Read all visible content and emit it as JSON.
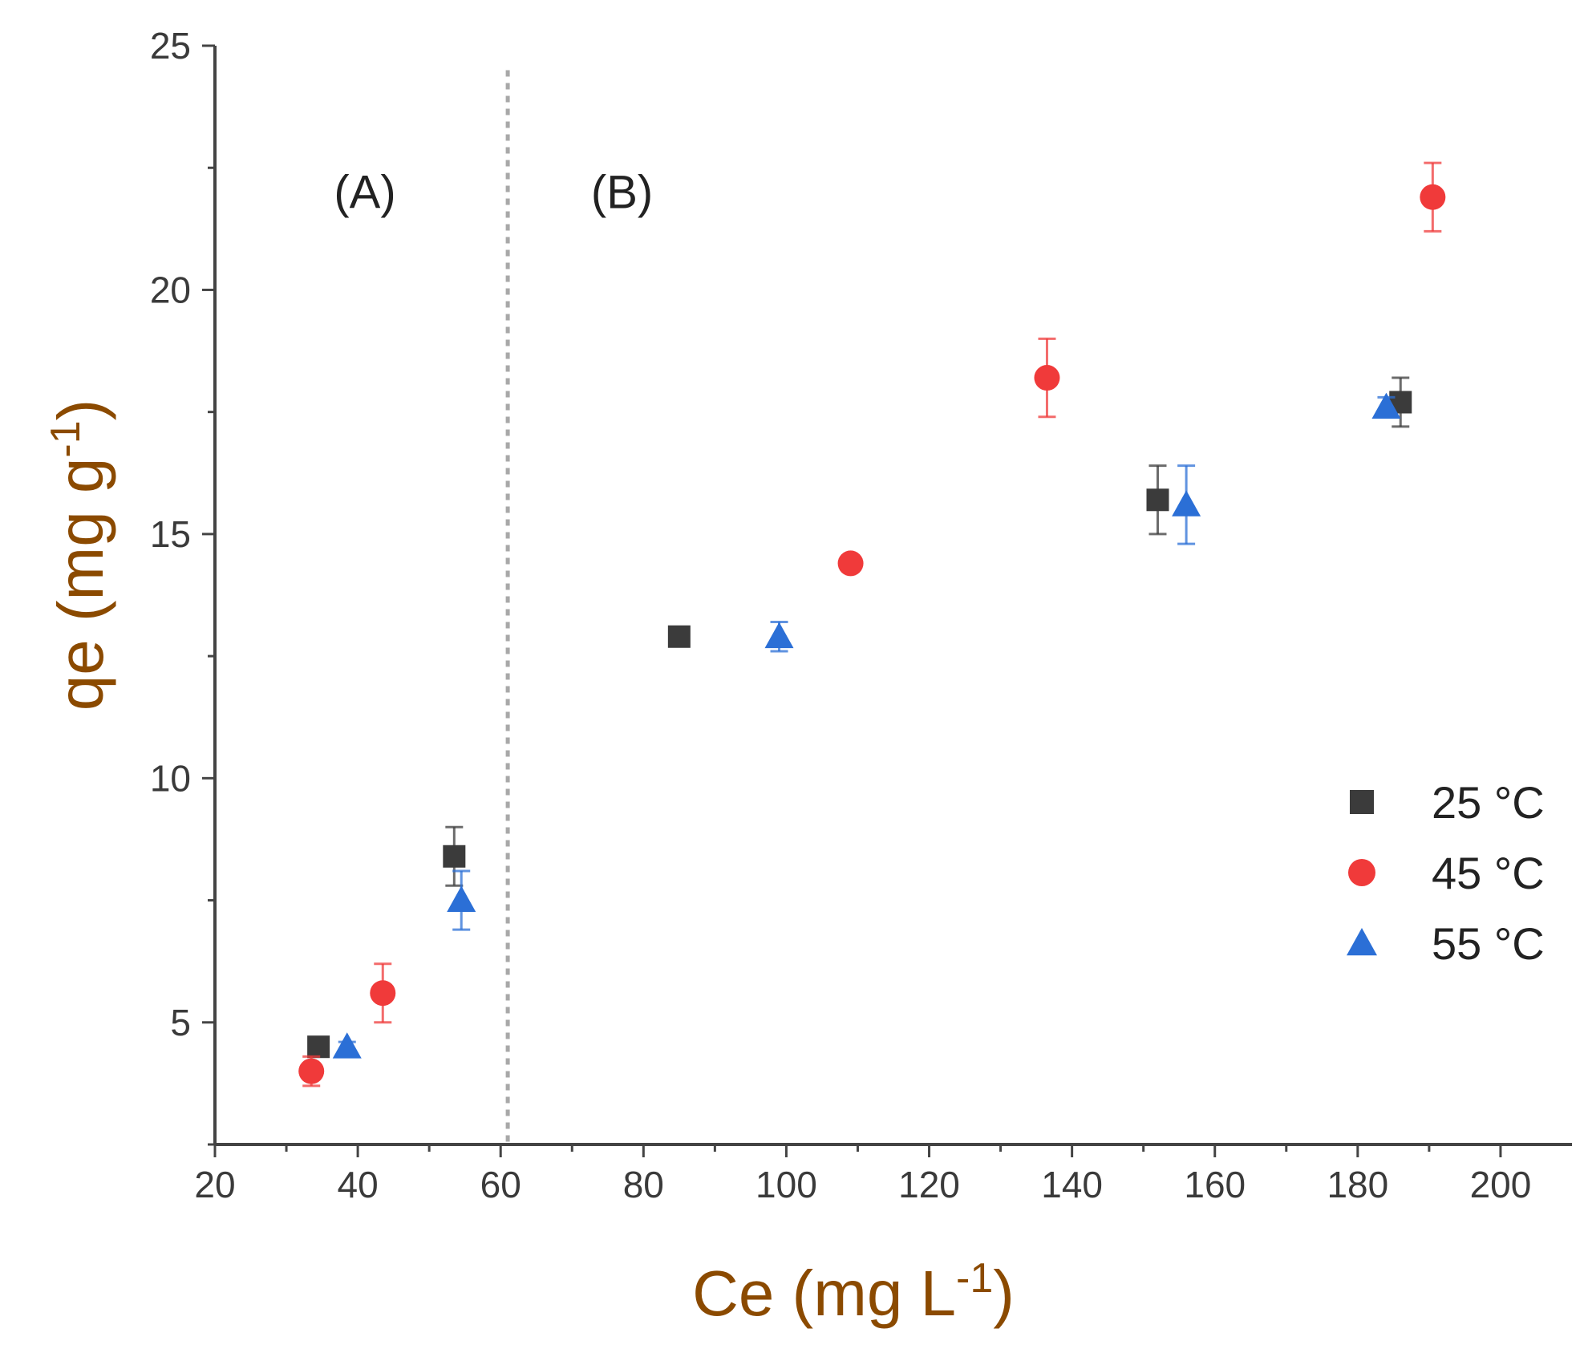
{
  "chart_data": {
    "type": "scatter",
    "title": "",
    "xlabel": "Ce (mg L-1)",
    "ylabel": "qe (mg g-1)",
    "xlabel_parts": {
      "base": "Ce (mg L",
      "sup": "-1",
      "end": ")"
    },
    "ylabel_parts": {
      "base": "qe (mg g",
      "sup": "-1",
      "end": ")"
    },
    "xlim": [
      20,
      210
    ],
    "ylim": [
      2.5,
      25
    ],
    "xticks": [
      20,
      40,
      60,
      80,
      100,
      120,
      140,
      160,
      180,
      200
    ],
    "yticks": [
      5,
      10,
      15,
      20,
      25
    ],
    "grid": false,
    "legend_position": "right",
    "divider_x": 61,
    "regions": [
      {
        "label": "(A)",
        "x": 41,
        "y": 22
      },
      {
        "label": "(B)",
        "x": 77,
        "y": 22
      }
    ],
    "series": [
      {
        "name": "25 °C",
        "marker": "square",
        "color": "#3b3b3b",
        "points": [
          {
            "x": 34.5,
            "y": 4.5,
            "err": 0.1
          },
          {
            "x": 53.5,
            "y": 8.4,
            "err": 0.6
          },
          {
            "x": 85,
            "y": 12.9,
            "err": 0.1
          },
          {
            "x": 152,
            "y": 15.7,
            "err": 0.7
          },
          {
            "x": 186,
            "y": 17.7,
            "err": 0.5
          }
        ]
      },
      {
        "name": "45 °C",
        "marker": "circle",
        "color": "#f03a3a",
        "points": [
          {
            "x": 33.5,
            "y": 4.0,
            "err": 0.3
          },
          {
            "x": 43.5,
            "y": 5.6,
            "err": 0.6
          },
          {
            "x": 109,
            "y": 14.4,
            "err": 0.1
          },
          {
            "x": 136.5,
            "y": 18.2,
            "err": 0.8
          },
          {
            "x": 190.5,
            "y": 21.9,
            "err": 0.7
          }
        ]
      },
      {
        "name": "55 °C",
        "marker": "triangle",
        "color": "#2b6fd6",
        "points": [
          {
            "x": 38.5,
            "y": 4.5,
            "err": 0.1
          },
          {
            "x": 54.5,
            "y": 7.5,
            "err": 0.6
          },
          {
            "x": 99,
            "y": 12.9,
            "err": 0.3
          },
          {
            "x": 156,
            "y": 15.6,
            "err": 0.8
          },
          {
            "x": 184,
            "y": 17.6,
            "err": 0.2
          }
        ]
      }
    ]
  }
}
